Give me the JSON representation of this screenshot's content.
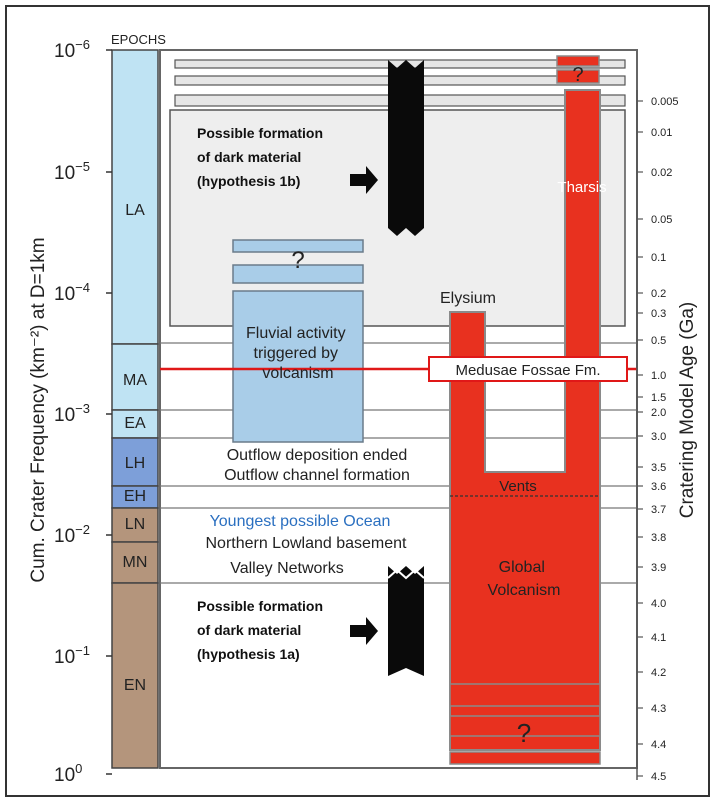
{
  "epochs_header": "EPOCHS",
  "y_axis_label": "Cum. Crater Frequency (km⁻²) at D=1km",
  "right_axis_label": "Cratering Model Age (Ga)",
  "left_ticks": [
    {
      "base": "10",
      "exp": "−6"
    },
    {
      "base": "10",
      "exp": "−5"
    },
    {
      "base": "10",
      "exp": "−4"
    },
    {
      "base": "10",
      "exp": "−3"
    },
    {
      "base": "10",
      "exp": "−2"
    },
    {
      "base": "10",
      "exp": "−1"
    },
    {
      "base": "10",
      "exp": "0"
    }
  ],
  "right_ticks": [
    "0.005",
    "0.01",
    "0.02",
    "0.05",
    "0.1",
    "0.2",
    "0.3",
    "0.5",
    "1.0",
    "1.5",
    "2.0",
    "3.0",
    "3.5",
    "3.6",
    "3.7",
    "3.8",
    "3.9",
    "4.0",
    "4.1",
    "4.2",
    "4.3",
    "4.4",
    "4.5"
  ],
  "epochs": [
    {
      "label": "LA",
      "color": "#bfe3f3"
    },
    {
      "label": "MA",
      "color": "#bfe3f3"
    },
    {
      "label": "EA",
      "color": "#bfe3f3"
    },
    {
      "label": "LH",
      "color": "#7d9fd9"
    },
    {
      "label": "EH",
      "color": "#7d9fd9"
    },
    {
      "label": "LN",
      "color": "#b4957c"
    },
    {
      "label": "MN",
      "color": "#b4957c"
    },
    {
      "label": "EN",
      "color": "#b4957c"
    }
  ],
  "annotations": {
    "dark_material_1b": [
      "Possible formation",
      "of dark material",
      "(hypothesis 1b)"
    ],
    "dark_material_1a": [
      "Possible formation",
      "of dark material",
      "(hypothesis 1a)"
    ],
    "fluvial": [
      "Fluvial activity",
      "triggered by",
      "volcanism"
    ],
    "question_mark": "?",
    "outflow_deposition": "Outflow deposition ended",
    "outflow_channel": "Outflow channel formation",
    "youngest_ocean": "Youngest possible Ocean",
    "northern_lowland": "Northern Lowland basement",
    "valley_networks": "Valley Networks",
    "elysium": "Elysium",
    "tharsis": "Tharsis",
    "medusae": "Medusae Fossae Fm.",
    "vents": "Vents",
    "global_volcanism": [
      "Global",
      "Volcanism"
    ]
  },
  "colors": {
    "volcanic_red": "#e8311f",
    "epoch_blue_light": "#bfe3f3",
    "epoch_blue_dark": "#7d9fd9",
    "epoch_brown": "#b4957c",
    "fluvial_blue": "#a9cde8",
    "gray_box": "#eeeeee",
    "ocean_text": "#2a6fc0",
    "medusae_line": "#e01818"
  }
}
